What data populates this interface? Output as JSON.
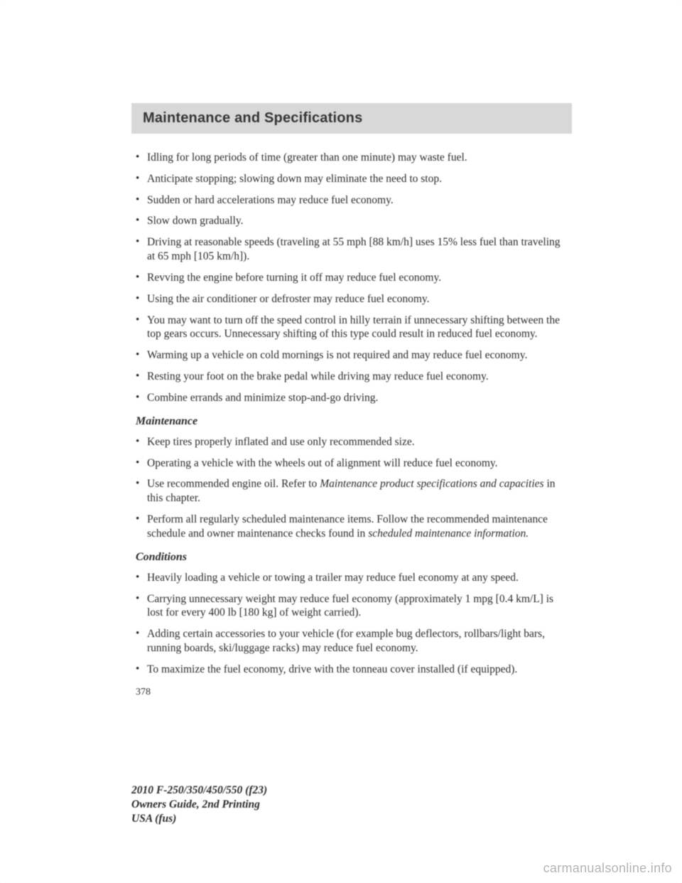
{
  "header": {
    "title": "Maintenance and Specifications"
  },
  "bullets_top": [
    "Idling for long periods of time (greater than one minute) may waste fuel.",
    "Anticipate stopping; slowing down may eliminate the need to stop.",
    "Sudden or hard accelerations may reduce fuel economy.",
    "Slow down gradually.",
    "Driving at reasonable speeds (traveling at 55 mph [88 km/h] uses 15% less fuel than traveling at 65 mph [105 km/h]).",
    "Revving the engine before turning it off may reduce fuel economy.",
    "Using the air conditioner or defroster may reduce fuel economy.",
    "You may want to turn off the speed control in hilly terrain if unnecessary shifting between the top gears occurs. Unnecessary shifting of this type could result in reduced fuel economy.",
    "Warming up a vehicle on cold mornings is not required and may reduce fuel economy.",
    "Resting your foot on the brake pedal while driving may reduce fuel economy.",
    "Combine errands and minimize stop-and-go driving."
  ],
  "maintenance": {
    "heading": "Maintenance",
    "items": [
      "Keep tires properly inflated and use only recommended size.",
      "Operating a vehicle with the wheels out of alignment will reduce fuel economy."
    ],
    "item_oil_pre": "Use recommended engine oil. Refer to ",
    "item_oil_italic": "Maintenance product specifications and capacities",
    "item_oil_post": " in this chapter.",
    "item_sched_pre": "Perform all regularly scheduled maintenance items. Follow the recommended maintenance schedule and owner maintenance checks found in ",
    "item_sched_italic": "scheduled maintenance information.",
    "item_sched_post": ""
  },
  "conditions": {
    "heading": "Conditions",
    "items": [
      "Heavily loading a vehicle or towing a trailer may reduce fuel economy at any speed.",
      "Carrying unnecessary weight may reduce fuel economy (approximately 1 mpg [0.4 km/L] is lost for every 400 lb [180 kg] of weight carried).",
      "Adding certain accessories to your vehicle (for example bug deflectors, rollbars/light bars, running boards, ski/luggage racks) may reduce fuel economy.",
      "To maximize the fuel economy, drive with the tonneau cover installed (if equipped)."
    ]
  },
  "page_number": "378",
  "footer": {
    "line1": "2010 F-250/350/450/550 (f23)",
    "line2": "Owners Guide, 2nd Printing",
    "line3": "USA (fus)"
  },
  "watermark": "carmanualsonline.info",
  "colors": {
    "page_bg": "#ffffff",
    "header_bg": "#d8d8d8",
    "text": "#2a2a2a",
    "watermark": "rgba(120,120,120,0.55)"
  },
  "typography": {
    "body_font": "Georgia serif",
    "header_font": "Arial sans-serif",
    "body_size_pt": 11.5,
    "header_size_pt": 15,
    "header_weight": "bold"
  }
}
